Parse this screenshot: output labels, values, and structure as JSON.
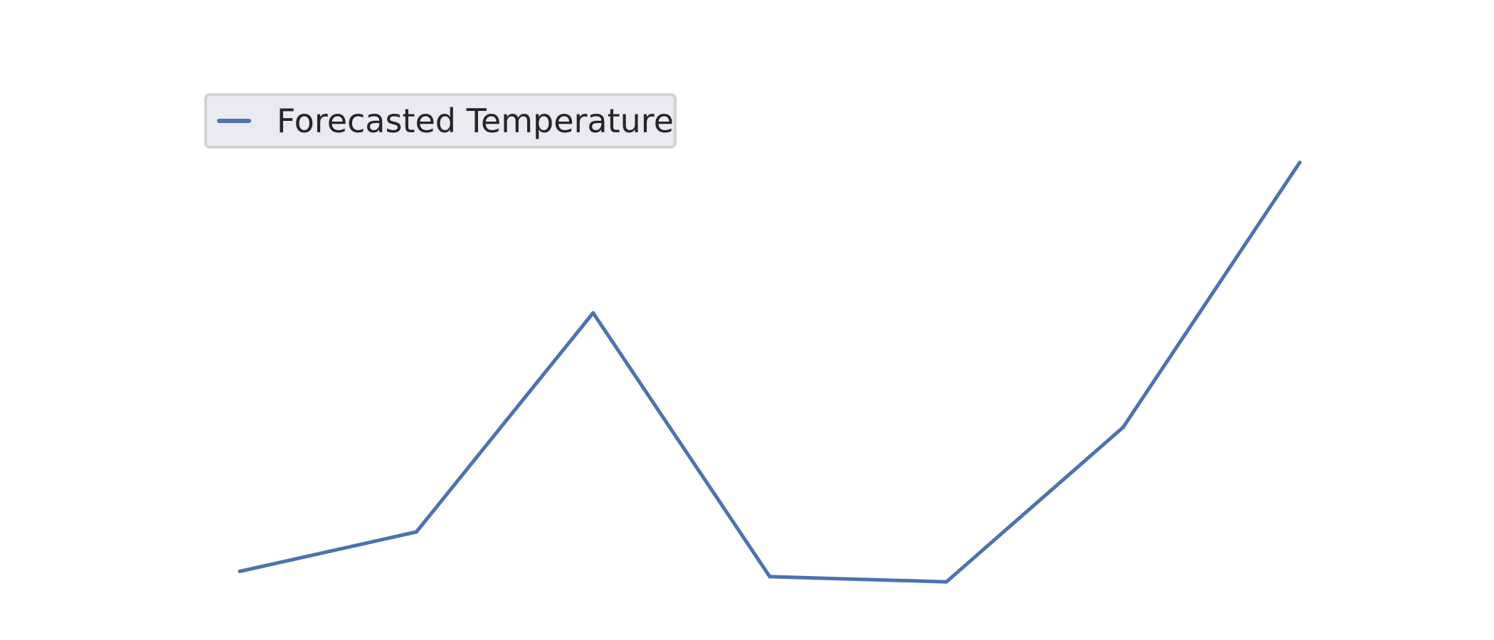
{
  "colors": {
    "background": "#ffffff",
    "series": "#4c72b0",
    "legend_bg": "#eaeaf2",
    "legend_border": "#d2d2d6",
    "legend_text": "#262626"
  },
  "legend": {
    "placement": "top-left",
    "label": "Forecasted Temperature"
  },
  "chart_data": {
    "type": "line",
    "title": "",
    "xlabel": "",
    "ylabel": "",
    "grid": false,
    "axes_visible": false,
    "x": [
      1,
      2,
      3,
      4,
      5,
      6,
      7
    ],
    "ylim": [
      0,
      100
    ],
    "series": [
      {
        "name": "Forecasted Temperature",
        "values": [
          6.3,
          13.1,
          50.8,
          5.4,
          4.5,
          31.1,
          76.7
        ]
      }
    ]
  }
}
